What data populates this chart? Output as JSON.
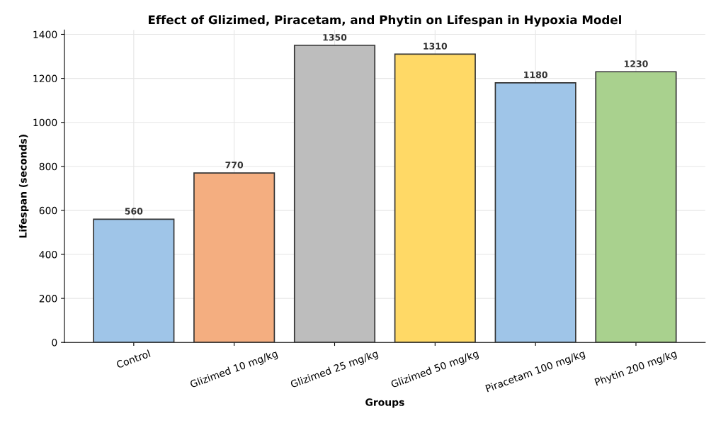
{
  "chart_data": {
    "type": "bar",
    "title": "Effect of Glizimed, Piracetam, and Phytin on Lifespan in Hypoxia Model",
    "xlabel": "Groups",
    "ylabel": "Lifespan (seconds)",
    "categories": [
      "Control",
      "Glizimed 10 mg/kg",
      "Glizimed 25 mg/kg",
      "Glizimed 50 mg/kg",
      "Piracetam 100 mg/kg",
      "Phytin 200 mg/kg"
    ],
    "values": [
      560,
      770,
      1350,
      1310,
      1180,
      1230
    ],
    "colors": [
      "#9fc5e8",
      "#f4ae80",
      "#bdbdbd",
      "#ffd966",
      "#9fc5e8",
      "#a9d18e"
    ],
    "ylim": [
      0,
      1420
    ],
    "yticks": [
      0,
      200,
      400,
      600,
      800,
      1000,
      1200,
      1400
    ],
    "grid": true,
    "data_labels": true
  }
}
